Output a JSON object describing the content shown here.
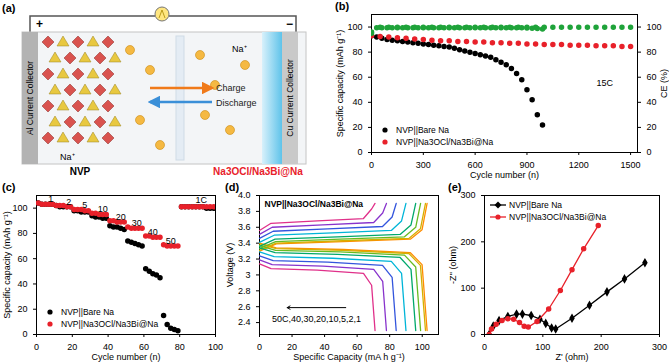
{
  "diagram": {
    "panel": "(a)",
    "plus": "+",
    "minus": "−",
    "left_collector": "Al Current Collector",
    "right_collector": "Cu Current Collector",
    "cathode": "NVP",
    "anode": "Na3OCl/Na3Bi@Na",
    "charge": "Charge",
    "discharge": "Discharge",
    "ion_labels": [
      "Na⁺",
      "Na⁺"
    ]
  },
  "chart_data": [
    {
      "panel": "(b)",
      "type": "scatter",
      "xlabel": "Cycle number (n)",
      "ylabel": "Specific capacity (mAh g⁻¹)",
      "y2label": "CE (%)",
      "xlim": [
        0,
        1540
      ],
      "xticks": [
        0,
        300,
        600,
        900,
        1200,
        1500
      ],
      "ylim": [
        0,
        110
      ],
      "yticks": [
        0,
        20,
        40,
        60,
        80,
        100
      ],
      "y2lim": [
        0,
        110
      ],
      "y2ticks": [
        0,
        20,
        40,
        60,
        80,
        100
      ],
      "legend": "lower left",
      "annotations": [
        {
          "text": "15C",
          "x": 1350,
          "y": 55
        }
      ],
      "series": [
        {
          "name": "NVP||Bare Na",
          "color": "#000000",
          "marker": "circle",
          "x": [
            0,
            30,
            60,
            90,
            120,
            150,
            180,
            210,
            240,
            270,
            300,
            330,
            360,
            390,
            420,
            450,
            480,
            510,
            540,
            570,
            600,
            630,
            660,
            690,
            720,
            750,
            780,
            810,
            840,
            870,
            900,
            930,
            960,
            990
          ],
          "values": [
            93,
            92,
            91,
            90,
            89.5,
            89,
            88.5,
            88,
            87.5,
            87,
            86.5,
            86,
            85.5,
            85,
            84.5,
            84,
            83,
            82,
            81,
            80,
            79,
            78,
            77,
            76,
            74,
            72,
            70,
            67,
            63,
            58,
            50,
            42,
            30,
            22
          ]
        },
        {
          "name": "NVP||Na3OCl/Na3Bi@Na",
          "color": "#e8212a",
          "marker": "circle",
          "x": [
            0,
            50,
            100,
            150,
            200,
            250,
            300,
            350,
            400,
            450,
            500,
            550,
            600,
            650,
            700,
            750,
            800,
            850,
            900,
            950,
            1000,
            1050,
            1100,
            1150,
            1200,
            1250,
            1300,
            1350,
            1400,
            1450,
            1500
          ],
          "values": [
            93,
            92.5,
            92,
            91.5,
            91,
            90.5,
            90,
            89.5,
            89,
            89,
            88.5,
            88.5,
            88,
            88,
            87.5,
            87.5,
            87,
            87,
            86.5,
            86.5,
            86,
            86,
            86,
            85.5,
            85.5,
            85.5,
            85,
            85,
            85,
            84.5,
            84.5
          ]
        },
        {
          "axis": "y2",
          "color": "#1fa33a",
          "marker": "circle",
          "x": [
            0,
            30,
            60,
            90,
            120,
            150,
            180,
            210,
            240,
            270,
            300,
            330,
            360,
            390,
            420,
            450,
            480,
            510,
            540,
            570,
            600,
            630,
            660,
            690,
            720,
            750,
            780,
            810,
            840,
            870,
            900,
            930,
            960,
            990
          ],
          "values": [
            95,
            99.5,
            99.5,
            99.5,
            99.5,
            99.5,
            99.5,
            99.5,
            99.5,
            99.5,
            99.5,
            99.5,
            99.5,
            99.5,
            99.5,
            99.5,
            99.5,
            99.5,
            99.5,
            99.5,
            99.5,
            99.5,
            99.5,
            99.5,
            99.5,
            99.5,
            99.5,
            99.5,
            99.5,
            99.5,
            99.2,
            99,
            98.8,
            98.5
          ]
        },
        {
          "axis": "y2",
          "color": "#1fa33a",
          "marker": "circle",
          "x": [
            0,
            50,
            100,
            150,
            200,
            250,
            300,
            350,
            400,
            450,
            500,
            550,
            600,
            650,
            700,
            750,
            800,
            850,
            900,
            950,
            1000,
            1050,
            1100,
            1150,
            1200,
            1250,
            1300,
            1350,
            1400,
            1450,
            1500
          ],
          "values": [
            96,
            99.8,
            99.8,
            99.8,
            99.8,
            99.8,
            99.8,
            99.8,
            99.8,
            99.8,
            99.8,
            99.8,
            99.8,
            99.8,
            99.8,
            99.8,
            99.8,
            99.8,
            99.8,
            99.8,
            99.8,
            99.8,
            99.8,
            99.8,
            99.8,
            99.8,
            99.8,
            99.8,
            99.8,
            99.8,
            99.8
          ]
        }
      ]
    },
    {
      "panel": "(c)",
      "type": "scatter",
      "xlabel": "Cycle number (n)",
      "ylabel": "Specific capacity (mAh g⁻¹)",
      "xlim": [
        0,
        100
      ],
      "xticks": [
        0,
        20,
        40,
        60,
        80,
        100
      ],
      "ylim": [
        0,
        110
      ],
      "yticks": [
        0,
        20,
        40,
        60,
        80,
        100
      ],
      "legend": "lower left",
      "annotations": [
        {
          "text": "1",
          "x": 8,
          "y": 107
        },
        {
          "text": "2",
          "x": 18,
          "y": 105
        },
        {
          "text": "5",
          "x": 27,
          "y": 102
        },
        {
          "text": "10",
          "x": 37,
          "y": 99
        },
        {
          "text": "20",
          "x": 47,
          "y": 93
        },
        {
          "text": "30",
          "x": 56,
          "y": 88
        },
        {
          "text": "40",
          "x": 65,
          "y": 81
        },
        {
          "text": "50",
          "x": 75,
          "y": 74
        },
        {
          "text": "1C",
          "x": 92,
          "y": 106
        }
      ],
      "series": [
        {
          "name": "NVP||Bare Na",
          "color": "#000000",
          "marker": "circle",
          "x": [
            1,
            3,
            5,
            7,
            9,
            11,
            13,
            15,
            17,
            19,
            21,
            23,
            25,
            27,
            29,
            31,
            33,
            35,
            37,
            39,
            41,
            43,
            45,
            47,
            49,
            51,
            53,
            55,
            57,
            59,
            61,
            63,
            65,
            67,
            69,
            71,
            73,
            75,
            77,
            79,
            81,
            83,
            85,
            87,
            89,
            91,
            93,
            95,
            97,
            99
          ],
          "values": [
            104,
            103,
            103,
            103,
            103,
            102,
            101,
            101,
            101,
            101,
            98,
            98,
            97,
            97,
            97,
            94,
            93,
            93,
            92,
            92,
            86,
            85,
            85,
            84,
            83,
            74,
            73,
            72,
            71,
            70,
            52,
            50,
            48,
            47,
            45,
            15,
            8,
            5,
            4,
            3,
            101,
            101,
            101,
            101,
            101,
            101,
            101,
            100,
            100,
            100
          ]
        },
        {
          "name": "NVP||Na3OCl/Na3Bi@Na",
          "color": "#e8212a",
          "marker": "circle",
          "x": [
            1,
            3,
            5,
            7,
            9,
            11,
            13,
            15,
            17,
            19,
            21,
            23,
            25,
            27,
            29,
            31,
            33,
            35,
            37,
            39,
            41,
            43,
            45,
            47,
            49,
            51,
            53,
            55,
            57,
            59,
            61,
            63,
            65,
            67,
            69,
            71,
            73,
            75,
            77,
            79,
            81,
            83,
            85,
            87,
            89,
            91,
            93,
            95,
            97,
            99
          ],
          "values": [
            104,
            103,
            103,
            103,
            103,
            102,
            102,
            102,
            101,
            101,
            99,
            99,
            99,
            98,
            98,
            96,
            96,
            95,
            95,
            95,
            90,
            90,
            89,
            89,
            89,
            85,
            84,
            84,
            84,
            84,
            78,
            78,
            77,
            77,
            77,
            71,
            70,
            70,
            70,
            70,
            101,
            101,
            101,
            101,
            101,
            101,
            101,
            101,
            101,
            101
          ]
        }
      ]
    },
    {
      "panel": "(d)",
      "type": "line",
      "title": "NVP||Na3OCl/Na3Bi@Na",
      "xlabel": "Specific Capacity (mA h g⁻¹)",
      "ylabel": "Voltage (V)",
      "xlim": [
        0,
        110
      ],
      "xticks": [
        0,
        20,
        40,
        60,
        80,
        100
      ],
      "ylim": [
        2.25,
        4.0
      ],
      "yticks": [
        2.4,
        2.6,
        2.8,
        3.0,
        3.2,
        3.4,
        3.6,
        3.8,
        {
          "value": 4,
          "label": "4.0"
        }
      ],
      "annotations": [
        {
          "text": "50C,40,30,20,10,5,2,1",
          "x": 35,
          "y": 2.45
        }
      ],
      "series": [
        {
          "color": "#ff8c00",
          "x": [
            0,
            10.3,
            51.5,
            92.7,
            99.9,
            103
          ],
          "values": [
            3.3,
            3.39,
            3.42,
            3.45,
            3.57,
            3.9
          ]
        },
        {
          "color": "#ff8c00",
          "x": [
            0,
            10.3,
            51.5,
            92.7,
            99.9,
            103
          ],
          "values": [
            3.4,
            3.34,
            3.32,
            3.28,
            3.13,
            2.3
          ]
        },
        {
          "color": "#d4b000",
          "x": [
            0,
            10.2,
            51,
            91.8,
            98.9,
            102
          ],
          "values": [
            3.31,
            3.4,
            3.43,
            3.46,
            3.58,
            3.9
          ]
        },
        {
          "color": "#d4b000",
          "x": [
            0,
            10.2,
            51,
            91.8,
            98.9,
            102
          ],
          "values": [
            3.39,
            3.33,
            3.31,
            3.27,
            3.12,
            2.3
          ]
        },
        {
          "color": "#66bb22",
          "x": [
            0,
            9.9,
            49.5,
            89.1,
            96,
            99
          ],
          "values": [
            3.33,
            3.42,
            3.45,
            3.48,
            3.6,
            3.9
          ]
        },
        {
          "color": "#66bb22",
          "x": [
            0,
            9.9,
            49.5,
            89.1,
            96,
            99
          ],
          "values": [
            3.37,
            3.31,
            3.29,
            3.25,
            3.1,
            2.3
          ]
        },
        {
          "color": "#00a86b",
          "x": [
            0,
            9.6,
            48,
            86.4,
            93.1,
            96
          ],
          "values": [
            3.36,
            3.45,
            3.48,
            3.51,
            3.63,
            3.9
          ]
        },
        {
          "color": "#00a86b",
          "x": [
            0,
            9.6,
            48,
            86.4,
            93.1,
            96
          ],
          "values": [
            3.34,
            3.28,
            3.26,
            3.22,
            3.07,
            2.3
          ]
        },
        {
          "color": "#00b5d8",
          "x": [
            0,
            9,
            45,
            81,
            87.3,
            90
          ],
          "values": [
            3.41,
            3.5,
            3.53,
            3.56,
            3.68,
            3.9
          ]
        },
        {
          "color": "#00b5d8",
          "x": [
            0,
            9,
            45,
            81,
            87.3,
            90
          ],
          "values": [
            3.29,
            3.23,
            3.21,
            3.17,
            3.02,
            2.3
          ]
        },
        {
          "color": "#3355dd",
          "x": [
            0,
            8.4,
            42,
            75.6,
            81.5,
            84
          ],
          "values": [
            3.46,
            3.55,
            3.58,
            3.61,
            3.73,
            3.9
          ]
        },
        {
          "color": "#3355dd",
          "x": [
            0,
            8.4,
            42,
            75.6,
            81.5,
            84
          ],
          "values": [
            3.24,
            3.18,
            3.16,
            3.12,
            2.97,
            2.3
          ]
        },
        {
          "color": "#8833cc",
          "x": [
            0,
            7.8,
            39,
            70.2,
            75.7,
            78
          ],
          "values": [
            3.51,
            3.6,
            3.63,
            3.66,
            3.78,
            3.9
          ]
        },
        {
          "color": "#8833cc",
          "x": [
            0,
            7.8,
            39,
            70.2,
            75.7,
            78
          ],
          "values": [
            3.19,
            3.13,
            3.11,
            3.07,
            2.92,
            2.3
          ]
        },
        {
          "color": "#e0308a",
          "x": [
            0,
            7.1,
            35.5,
            63.9,
            68.9,
            71
          ],
          "values": [
            3.56,
            3.65,
            3.68,
            3.71,
            3.83,
            3.9
          ]
        },
        {
          "color": "#e0308a",
          "x": [
            0,
            7.1,
            35.5,
            63.9,
            68.9,
            71
          ],
          "values": [
            3.14,
            3.08,
            3.06,
            3.02,
            2.87,
            2.3
          ]
        }
      ]
    },
    {
      "panel": "(e)",
      "type": "line",
      "xlabel": "Z' (ohm)",
      "ylabel": "-Z'' (ohm)",
      "xlim": [
        0,
        300
      ],
      "xticks": [
        0,
        100,
        200,
        300
      ],
      "ylim": [
        0,
        300
      ],
      "yticks": [
        0,
        100,
        200,
        300
      ],
      "legend": "upper left",
      "series": [
        {
          "name": "NVP||Bare Na",
          "color": "#000000",
          "marker": "diamond",
          "x": [
            8,
            15,
            25,
            40,
            55,
            65,
            80,
            95,
            105,
            115,
            122,
            150,
            180,
            210,
            240,
            275
          ],
          "values": [
            0,
            18,
            30,
            39,
            44,
            44,
            41,
            33,
            24,
            14,
            12,
            35,
            63,
            92,
            120,
            155
          ]
        },
        {
          "name": "NVP||Na3OCl/Na3Bi@Na",
          "color": "#e8212a",
          "marker": "circle",
          "x": [
            8,
            12,
            20,
            30,
            40,
            50,
            60,
            68,
            75,
            90,
            110,
            130,
            150,
            170,
            195
          ],
          "values": [
            0,
            12,
            22,
            30,
            34,
            33,
            26,
            18,
            16,
            28,
            55,
            95,
            140,
            185,
            235
          ]
        }
      ]
    }
  ]
}
